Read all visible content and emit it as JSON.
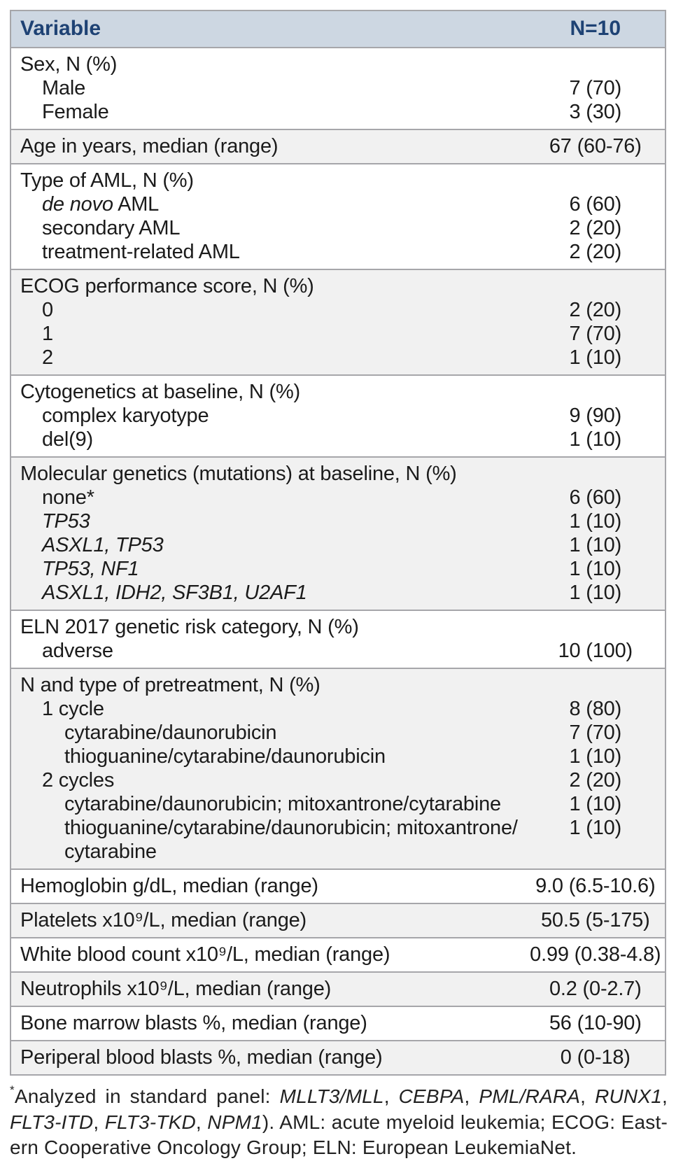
{
  "table": {
    "header": {
      "variable_label": "Variable",
      "n_label": "N=10"
    },
    "sections": [
      {
        "shaded": false,
        "rows": [
          {
            "indent": 0,
            "label": [
              {
                "t": "Sex, N (%)"
              }
            ],
            "value": ""
          },
          {
            "indent": 1,
            "label": [
              {
                "t": "Male"
              }
            ],
            "value": "7 (70)"
          },
          {
            "indent": 1,
            "label": [
              {
                "t": "Female"
              }
            ],
            "value": "3 (30)"
          }
        ]
      },
      {
        "shaded": true,
        "rows": [
          {
            "indent": 0,
            "label": [
              {
                "t": "Age in years, median (range)"
              }
            ],
            "value": "67 (60-76)"
          }
        ]
      },
      {
        "shaded": false,
        "rows": [
          {
            "indent": 0,
            "label": [
              {
                "t": "Type of AML, N (%)"
              }
            ],
            "value": ""
          },
          {
            "indent": 1,
            "label": [
              {
                "t": "de novo",
                "i": true
              },
              {
                "t": " AML"
              }
            ],
            "value": "6 (60)"
          },
          {
            "indent": 1,
            "label": [
              {
                "t": "secondary AML"
              }
            ],
            "value": "2 (20)"
          },
          {
            "indent": 1,
            "label": [
              {
                "t": "treatment-related AML"
              }
            ],
            "value": "2 (20)"
          }
        ]
      },
      {
        "shaded": true,
        "rows": [
          {
            "indent": 0,
            "label": [
              {
                "t": "ECOG performance score, N (%)"
              }
            ],
            "value": ""
          },
          {
            "indent": 1,
            "label": [
              {
                "t": "0"
              }
            ],
            "value": "2 (20)"
          },
          {
            "indent": 1,
            "label": [
              {
                "t": "1"
              }
            ],
            "value": "7 (70)"
          },
          {
            "indent": 1,
            "label": [
              {
                "t": "2"
              }
            ],
            "value": "1 (10)"
          }
        ]
      },
      {
        "shaded": false,
        "rows": [
          {
            "indent": 0,
            "label": [
              {
                "t": "Cytogenetics at baseline, N (%)"
              }
            ],
            "value": ""
          },
          {
            "indent": 1,
            "label": [
              {
                "t": "complex karyotype"
              }
            ],
            "value": "9 (90)"
          },
          {
            "indent": 1,
            "label": [
              {
                "t": "del(9)"
              }
            ],
            "value": "1 (10)"
          }
        ]
      },
      {
        "shaded": true,
        "rows": [
          {
            "indent": 0,
            "label": [
              {
                "t": "Molecular genetics (mutations) at baseline, N (%)"
              }
            ],
            "value": ""
          },
          {
            "indent": 1,
            "label": [
              {
                "t": "none*"
              }
            ],
            "value": "6 (60)"
          },
          {
            "indent": 1,
            "label": [
              {
                "t": "TP53",
                "i": true
              }
            ],
            "value": "1 (10)"
          },
          {
            "indent": 1,
            "label": [
              {
                "t": "ASXL1, TP53",
                "i": true
              }
            ],
            "value": "1 (10)"
          },
          {
            "indent": 1,
            "label": [
              {
                "t": "TP53, NF1",
                "i": true
              }
            ],
            "value": "1 (10)"
          },
          {
            "indent": 1,
            "label": [
              {
                "t": "ASXL1, IDH2, SF3B1, U2AF1",
                "i": true
              }
            ],
            "value": "1 (10)"
          }
        ]
      },
      {
        "shaded": false,
        "rows": [
          {
            "indent": 0,
            "label": [
              {
                "t": "ELN 2017 genetic risk category, N (%)"
              }
            ],
            "value": ""
          },
          {
            "indent": 1,
            "label": [
              {
                "t": "adverse"
              }
            ],
            "value": "10 (100)"
          }
        ]
      },
      {
        "shaded": true,
        "rows": [
          {
            "indent": 0,
            "label": [
              {
                "t": "N and type of pretreatment, N (%)"
              }
            ],
            "value": ""
          },
          {
            "indent": 1,
            "label": [
              {
                "t": "1 cycle"
              }
            ],
            "value": "8 (80)"
          },
          {
            "indent": 2,
            "label": [
              {
                "t": "cytarabine/daunorubicin"
              }
            ],
            "value": "7 (70)"
          },
          {
            "indent": 2,
            "label": [
              {
                "t": "thioguanine/cytarabine/daunorubicin"
              }
            ],
            "value": "1 (10)"
          },
          {
            "indent": 1,
            "label": [
              {
                "t": "2 cycles"
              }
            ],
            "value": "2 (20)"
          },
          {
            "indent": 2,
            "label": [
              {
                "t": "cytarabine/daunorubicin; mitoxantrone/cytarabine"
              }
            ],
            "value": "1 (10)"
          },
          {
            "indent": 2,
            "label": [
              {
                "t": "thioguanine/cytarabine/daunorubicin; mitoxantrone/​cytarabine"
              }
            ],
            "value": "1 (10)"
          }
        ]
      },
      {
        "shaded": false,
        "rows": [
          {
            "indent": 0,
            "label": [
              {
                "t": "Hemoglobin g/dL, median (range)"
              }
            ],
            "value": "9.0 (6.5-10.6)"
          }
        ]
      },
      {
        "shaded": true,
        "rows": [
          {
            "indent": 0,
            "label": [
              {
                "t": "Platelets x10⁹/L, median (range)"
              }
            ],
            "value": "50.5 (5-175)"
          }
        ]
      },
      {
        "shaded": false,
        "rows": [
          {
            "indent": 0,
            "label": [
              {
                "t": "White blood count x10⁹/L, median (range)"
              }
            ],
            "value": "0.99 (0.38-4.8)"
          }
        ]
      },
      {
        "shaded": true,
        "rows": [
          {
            "indent": 0,
            "label": [
              {
                "t": "Neutrophils x10⁹/L, median (range)"
              }
            ],
            "value": "0.2 (0-2.7)"
          }
        ]
      },
      {
        "shaded": false,
        "rows": [
          {
            "indent": 0,
            "label": [
              {
                "t": "Bone marrow blasts %, median (range)"
              }
            ],
            "value": "56 (10-90)"
          }
        ]
      },
      {
        "shaded": true,
        "rows": [
          {
            "indent": 0,
            "label": [
              {
                "t": "Periperal blood blasts %, median (range)"
              }
            ],
            "value": "0 (0-18)"
          }
        ]
      }
    ]
  },
  "footnote": {
    "lines": [
      {
        "justify": true,
        "segments": [
          {
            "t": "*",
            "sup": true
          },
          {
            "t": "Analyzed in standard panel: "
          },
          {
            "t": "MLLT3/MLL",
            "i": true
          },
          {
            "t": ", "
          },
          {
            "t": "CEBPA",
            "i": true
          },
          {
            "t": ", "
          },
          {
            "t": "PML/RARA",
            "i": true
          },
          {
            "t": ", "
          },
          {
            "t": "RUNX1",
            "i": true
          },
          {
            "t": ","
          }
        ]
      },
      {
        "justify": true,
        "segments": [
          {
            "t": "FLT3-ITD",
            "i": true
          },
          {
            "t": ", "
          },
          {
            "t": "FLT3-TKD",
            "i": true
          },
          {
            "t": ", "
          },
          {
            "t": "NPM1",
            "i": true
          },
          {
            "t": "). AML: acute myeloid leukemia; ECOG: East-"
          }
        ]
      },
      {
        "justify": false,
        "segments": [
          {
            "t": "ern Cooperative Oncology Group; ELN: European LeukemiaNet."
          }
        ]
      }
    ]
  }
}
